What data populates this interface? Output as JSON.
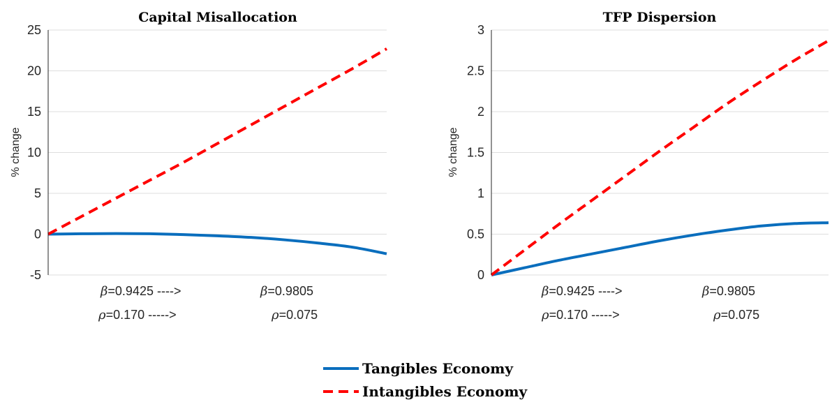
{
  "colors": {
    "tangibles": "#0a6ebd",
    "intangibles": "#ff0000"
  },
  "legend": {
    "tangibles_label": "Tangibles Economy",
    "intangibles_label": "Intangibles Economy"
  },
  "chart_data": [
    {
      "type": "line",
      "title": "Capital Misallocation",
      "ylabel": "% change",
      "xlabel": "",
      "ylim": [
        -5,
        25
      ],
      "yticks": [
        -5,
        0,
        5,
        10,
        15,
        20,
        25
      ],
      "ytick_labels": [
        "-5",
        "0",
        "5",
        "10",
        "15",
        "20",
        "25"
      ],
      "grid": true,
      "annotations": [
        {
          "symbol": "β",
          "text": "=0.9425  ---->"
        },
        {
          "symbol": "β",
          "text": "=0.9805"
        },
        {
          "symbol": "ρ",
          "text": "=0.170  ----->"
        },
        {
          "symbol": "ρ",
          "text": "=0.075"
        }
      ],
      "x": [
        0,
        0.1,
        0.2,
        0.3,
        0.4,
        0.5,
        0.6,
        0.7,
        0.8,
        0.9,
        1.0
      ],
      "series": [
        {
          "name": "Tangibles Economy",
          "values": [
            0,
            0.05,
            0.08,
            0.05,
            -0.05,
            -0.2,
            -0.4,
            -0.7,
            -1.1,
            -1.6,
            -2.4
          ]
        },
        {
          "name": "Intangibles Economy",
          "values": [
            0,
            2.2,
            4.4,
            6.6,
            8.8,
            11.1,
            13.4,
            15.7,
            18.0,
            20.3,
            22.7
          ]
        }
      ]
    },
    {
      "type": "line",
      "title": "TFP Dispersion",
      "ylabel": "% change",
      "xlabel": "",
      "ylim": [
        0,
        3
      ],
      "yticks": [
        0,
        0.5,
        1,
        1.5,
        2,
        2.5,
        3
      ],
      "ytick_labels": [
        "0",
        "0.5",
        "1",
        "1.5",
        "2",
        "2.5",
        "3"
      ],
      "grid": true,
      "annotations": [
        {
          "symbol": "β",
          "text": "=0.9425  ---->"
        },
        {
          "symbol": "β",
          "text": "=0.9805"
        },
        {
          "symbol": "ρ",
          "text": "=0.170  ----->"
        },
        {
          "symbol": "ρ",
          "text": "=0.075"
        }
      ],
      "x": [
        0,
        0.1,
        0.2,
        0.3,
        0.4,
        0.5,
        0.6,
        0.7,
        0.8,
        0.9,
        1.0
      ],
      "series": [
        {
          "name": "Tangibles Economy",
          "values": [
            0,
            0.09,
            0.18,
            0.26,
            0.34,
            0.42,
            0.49,
            0.55,
            0.6,
            0.63,
            0.64
          ]
        },
        {
          "name": "Intangibles Economy",
          "values": [
            0,
            0.31,
            0.62,
            0.92,
            1.22,
            1.52,
            1.81,
            2.1,
            2.37,
            2.63,
            2.87
          ]
        }
      ]
    }
  ]
}
